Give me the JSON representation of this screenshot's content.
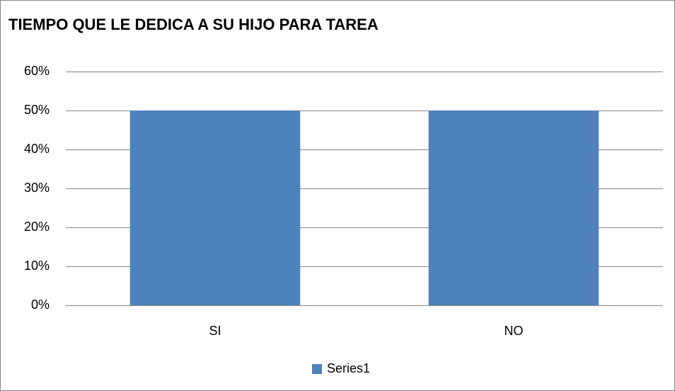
{
  "chart_data": {
    "type": "bar",
    "title": "TIEMPO QUE LE DEDICA A SU HIJO PARA TAREA",
    "categories": [
      "SI",
      "NO"
    ],
    "series": [
      {
        "name": "Series1",
        "color": "#4f81bd",
        "values": [
          50,
          50
        ]
      }
    ],
    "ylim": [
      0,
      60
    ],
    "yticks": [
      {
        "value": 0,
        "label": "0%"
      },
      {
        "value": 10,
        "label": "10%"
      },
      {
        "value": 20,
        "label": "20%"
      },
      {
        "value": 30,
        "label": "30%"
      },
      {
        "value": 40,
        "label": "40%"
      },
      {
        "value": 50,
        "label": "50%"
      },
      {
        "value": 60,
        "label": "60%"
      }
    ],
    "grid": true,
    "legend": "bottom"
  }
}
